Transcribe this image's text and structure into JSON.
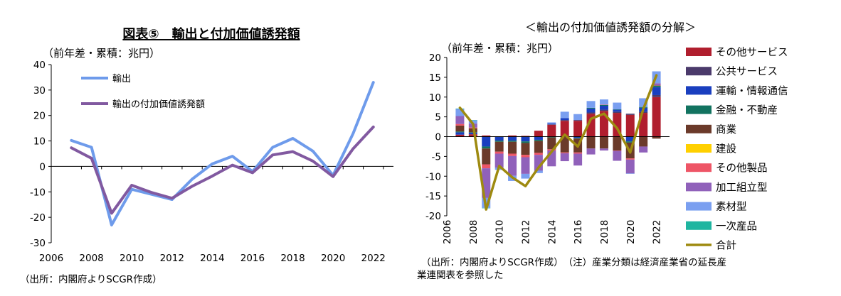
{
  "chart_data": [
    {
      "type": "line",
      "title": "図表⑤　輸出と付加価値誘発額",
      "unit_label": "（前年差・累積：兆円）",
      "source": "（出所：内閣府よりSCGR作成）",
      "x": [
        2007,
        2008,
        2009,
        2010,
        2011,
        2012,
        2013,
        2014,
        2015,
        2016,
        2017,
        2018,
        2019,
        2020,
        2021,
        2022
      ],
      "xticks": [
        "2006",
        "2008",
        "2010",
        "2012",
        "2014",
        "2016",
        "2018",
        "2020",
        "2022"
      ],
      "ylim": [
        -30,
        40
      ],
      "yticks": [
        "40",
        "30",
        "20",
        "10",
        "0",
        "-10",
        "-20",
        "-30"
      ],
      "grid": false,
      "legend": "top-left",
      "series": [
        {
          "name": "輸出",
          "color": "#6E9BEB",
          "values": [
            10.2,
            7.5,
            -23.0,
            -9.0,
            -11.0,
            -13.0,
            -5.0,
            1.0,
            4.0,
            -2.0,
            7.5,
            11.0,
            6.0,
            -3.5,
            13.0,
            33.0
          ]
        },
        {
          "name": "輸出の付加価値誘発額",
          "color": "#8159A0",
          "values": [
            7.3,
            3.2,
            -18.4,
            -7.4,
            -10.3,
            -12.5,
            -7.8,
            -3.8,
            0.5,
            -2.5,
            4.5,
            5.8,
            2.1,
            -4.0,
            7.0,
            15.5
          ]
        }
      ]
    },
    {
      "type": "bar",
      "stacked": true,
      "title": "＜輸出の付加価値誘発額の分解＞",
      "unit_label": "（前年差・累積：兆円）",
      "source": "（出所：内閣府よりSCGR作成）　（注）産業分類は経済産業省の延長産",
      "source_line2": "業連関表を参照した",
      "x": [
        2007,
        2008,
        2009,
        2010,
        2011,
        2012,
        2013,
        2014,
        2015,
        2016,
        2017,
        2018,
        2019,
        2020,
        2021,
        2022
      ],
      "xticks": [
        "2006",
        "2008",
        "2010",
        "2012",
        "2014",
        "2016",
        "2018",
        "2020",
        "2022"
      ],
      "ylim": [
        -20,
        20
      ],
      "yticks": [
        "20",
        "15",
        "10",
        "5",
        "0",
        "-5",
        "-10",
        "-15",
        "-20"
      ],
      "grid": false,
      "legend": "right",
      "series": [
        {
          "name": "その他サービス",
          "color": "#B01E2E",
          "values": [
            0.5,
            0.6,
            0.3,
            0.1,
            0.3,
            0.2,
            1.5,
            3.0,
            4.0,
            4.0,
            5.8,
            6.5,
            6.0,
            5.5,
            6.0,
            10.0
          ]
        },
        {
          "name": "公共サービス",
          "color": "#4B3A6B",
          "values": [
            0.0,
            0.0,
            0.0,
            0.0,
            0.0,
            0.0,
            0.0,
            0.1,
            0.2,
            0.2,
            0.3,
            0.3,
            0.3,
            0.3,
            0.3,
            0.5
          ]
        },
        {
          "name": "運輸・情報通信",
          "color": "#1A3FBF",
          "values": [
            0.6,
            0.4,
            -2.5,
            -1.0,
            -1.0,
            -1.2,
            -0.8,
            0.2,
            0.5,
            -0.3,
            1.0,
            1.0,
            0.5,
            -1.2,
            1.0,
            2.0
          ]
        },
        {
          "name": "金融・不動産",
          "color": "#127360",
          "values": [
            0.2,
            0.1,
            -0.5,
            -0.3,
            -0.3,
            -0.4,
            -0.3,
            -0.2,
            0.0,
            -0.2,
            0.2,
            0.2,
            0.1,
            -0.3,
            0.2,
            0.4
          ]
        },
        {
          "name": "商業",
          "color": "#6B3A2A",
          "values": [
            1.5,
            1.0,
            -4.0,
            -2.5,
            -3.0,
            -3.0,
            -3.0,
            -3.0,
            -4.0,
            -3.5,
            -3.0,
            -3.0,
            -3.5,
            -4.0,
            -2.5,
            -0.5
          ]
        },
        {
          "name": "建設",
          "color": "#FFD000",
          "values": [
            0.0,
            0.0,
            0.0,
            0.0,
            0.0,
            0.0,
            0.0,
            0.0,
            0.0,
            0.0,
            0.0,
            0.0,
            0.0,
            0.0,
            0.0,
            0.0
          ]
        },
        {
          "name": "その他製品",
          "color": "#EE5566",
          "values": [
            0.4,
            0.2,
            -1.0,
            -0.5,
            -0.6,
            -0.6,
            -0.5,
            -0.3,
            -0.2,
            -0.3,
            0.0,
            0.1,
            -0.1,
            -0.3,
            0.0,
            0.1
          ]
        },
        {
          "name": "加工組立型",
          "color": "#9061BA",
          "values": [
            2.0,
            1.0,
            -7.5,
            -3.5,
            -5.0,
            -4.2,
            -4.0,
            -4.0,
            -2.0,
            -3.0,
            -1.5,
            -0.5,
            -2.5,
            -3.5,
            -1.5,
            0.5
          ]
        },
        {
          "name": "素材型",
          "color": "#7A9FF0",
          "values": [
            1.8,
            0.8,
            -2.5,
            -0.6,
            -1.3,
            -1.2,
            -0.6,
            0.3,
            1.6,
            1.5,
            1.7,
            1.3,
            1.7,
            -0.1,
            2.2,
            3.0
          ]
        },
        {
          "name": "一次産品",
          "color": "#1FB5A0",
          "values": [
            0.1,
            0.1,
            -0.1,
            0.0,
            0.0,
            0.0,
            0.0,
            0.0,
            0.0,
            0.0,
            0.0,
            0.0,
            0.0,
            0.0,
            0.0,
            0.0
          ]
        }
      ],
      "total": {
        "name": "合計",
        "color": "#9E8A10",
        "values": [
          7.3,
          3.2,
          -18.4,
          -7.4,
          -10.3,
          -12.5,
          -7.8,
          -3.8,
          0.5,
          -2.5,
          4.5,
          5.8,
          2.1,
          -4.0,
          7.0,
          15.5
        ]
      }
    }
  ]
}
